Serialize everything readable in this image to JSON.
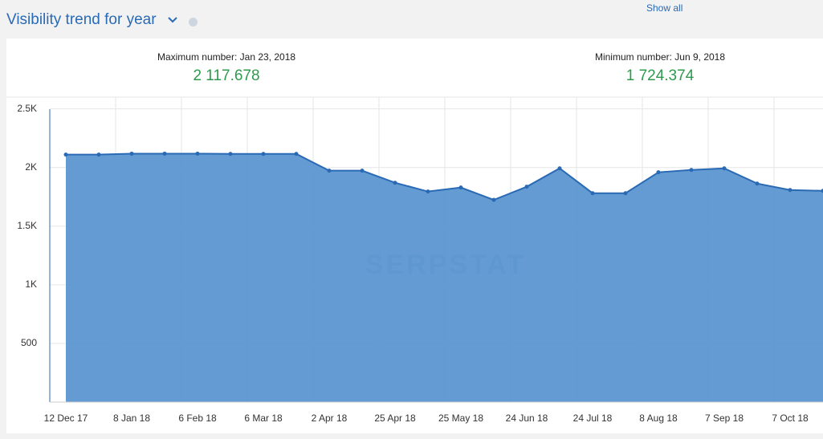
{
  "header": {
    "title": "Visibility trend for year",
    "link": "Show all"
  },
  "stats": [
    {
      "label": "Maximum number: Jan 23, 2018",
      "value": "2 117.678"
    },
    {
      "label": "Minimum number: Jun 9, 2018",
      "value": "1 724.374"
    }
  ],
  "chart_data": {
    "type": "area",
    "watermark": "SERPSTAT",
    "categories": [
      "12 Dec 17",
      null,
      "8 Jan 18",
      null,
      "6 Feb 18",
      null,
      "6 Mar 18",
      null,
      "2 Apr 18",
      null,
      "25 Apr 18",
      null,
      "25 May 18",
      null,
      "24 Jun 18",
      null,
      "24 Jul 18",
      null,
      "8 Aug 18",
      null,
      "7 Sep 18",
      null,
      "7 Oct 18",
      null
    ],
    "values": [
      2110,
      2110,
      2118,
      2118,
      2118,
      2116,
      2116,
      2116,
      1973,
      1973,
      1870,
      1795,
      1829,
      1724,
      1836,
      1993,
      1781,
      1781,
      1959,
      1979,
      1993,
      1863,
      1808,
      1801
    ],
    "color": "#5b96d0",
    "line_color": "#2a6ab5",
    "ylim": [
      0,
      2600
    ],
    "yticks": [
      {
        "value": 500,
        "label": "500"
      },
      {
        "value": 1000,
        "label": "1K"
      },
      {
        "value": 1500,
        "label": "1.5K"
      },
      {
        "value": 2000,
        "label": "2K"
      },
      {
        "value": 2500,
        "label": "2.5K"
      }
    ],
    "grid": true
  }
}
